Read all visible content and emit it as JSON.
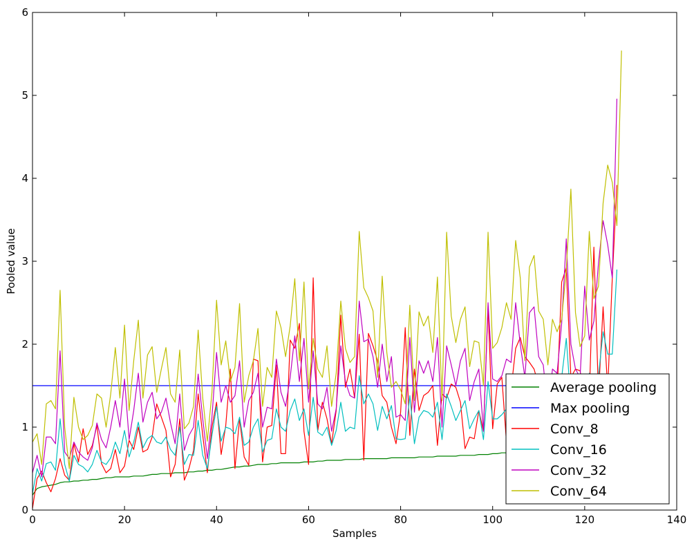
{
  "chart_data": {
    "type": "line",
    "title": "",
    "xlabel": "Samples",
    "ylabel": "Pooled value",
    "xlim": [
      0,
      140
    ],
    "ylim": [
      0,
      6
    ],
    "xticks": [
      0,
      20,
      40,
      60,
      80,
      100,
      120,
      140
    ],
    "yticks": [
      0,
      1,
      2,
      3,
      4,
      5,
      6
    ],
    "grid": false,
    "legend_position": "lower-right",
    "series": [
      {
        "name": "Average pooling",
        "color": "#008000",
        "values": [
          0.18,
          0.26,
          0.28,
          0.29,
          0.3,
          0.31,
          0.33,
          0.34,
          0.34,
          0.35,
          0.35,
          0.36,
          0.36,
          0.37,
          0.37,
          0.38,
          0.39,
          0.39,
          0.4,
          0.4,
          0.4,
          0.4,
          0.41,
          0.41,
          0.41,
          0.42,
          0.43,
          0.43,
          0.44,
          0.44,
          0.44,
          0.45,
          0.45,
          0.45,
          0.46,
          0.46,
          0.47,
          0.47,
          0.48,
          0.48,
          0.49,
          0.49,
          0.5,
          0.51,
          0.52,
          0.52,
          0.53,
          0.53,
          0.54,
          0.55,
          0.55,
          0.55,
          0.56,
          0.56,
          0.57,
          0.57,
          0.57,
          0.57,
          0.57,
          0.58,
          0.58,
          0.58,
          0.59,
          0.59,
          0.6,
          0.6,
          0.6,
          0.6,
          0.61,
          0.61,
          0.61,
          0.61,
          0.62,
          0.62,
          0.62,
          0.62,
          0.62,
          0.62,
          0.63,
          0.63,
          0.63,
          0.63,
          0.63,
          0.63,
          0.64,
          0.64,
          0.64,
          0.64,
          0.65,
          0.65,
          0.65,
          0.65,
          0.65,
          0.66,
          0.66,
          0.66,
          0.66,
          0.67,
          0.67,
          0.67,
          0.68,
          0.68,
          0.69,
          0.69,
          0.7,
          0.7,
          0.7,
          0.71,
          0.71,
          0.72,
          0.72,
          0.73,
          0.74,
          0.74,
          0.75,
          0.76,
          0.77,
          0.78,
          0.79,
          0.8,
          0.82,
          0.84,
          0.87,
          0.91,
          0.95,
          1.0,
          1.05,
          1.12
        ]
      },
      {
        "name": "Max pooling",
        "color": "#0000ff",
        "values": [
          1.5,
          1.5,
          1.5,
          1.5,
          1.5,
          1.5,
          1.5,
          1.5,
          1.5,
          1.5,
          1.5,
          1.5,
          1.5,
          1.5,
          1.5,
          1.5,
          1.5,
          1.5,
          1.5,
          1.5,
          1.5,
          1.5,
          1.5,
          1.5,
          1.5,
          1.5,
          1.5,
          1.5,
          1.5,
          1.5,
          1.5,
          1.5,
          1.5,
          1.5,
          1.5,
          1.5,
          1.5,
          1.5,
          1.5,
          1.5,
          1.5,
          1.5,
          1.5,
          1.5,
          1.5,
          1.5,
          1.5,
          1.5,
          1.5,
          1.5,
          1.5,
          1.5,
          1.5,
          1.5,
          1.5,
          1.5,
          1.5,
          1.5,
          1.5,
          1.5,
          1.5,
          1.5,
          1.5,
          1.5,
          1.5,
          1.5,
          1.5,
          1.5,
          1.5,
          1.5,
          1.5,
          1.5,
          1.5,
          1.5,
          1.5,
          1.5,
          1.5,
          1.5,
          1.5,
          1.5,
          1.5,
          1.5,
          1.5,
          1.5,
          1.5,
          1.5,
          1.5,
          1.5,
          1.5,
          1.5,
          1.5,
          1.5,
          1.5,
          1.5,
          1.5,
          1.5,
          1.5,
          1.5,
          1.5,
          1.5,
          1.5,
          1.5,
          1.5,
          1.5,
          1.5,
          1.5,
          1.5,
          1.5,
          1.5,
          1.5,
          1.5,
          1.5,
          1.5,
          1.5,
          1.5,
          1.5,
          1.5,
          1.5,
          1.5,
          1.5,
          1.5,
          1.5,
          1.5,
          1.5,
          1.5,
          1.5,
          1.5,
          1.5
        ]
      },
      {
        "name": "Conv_8",
        "color": "#ff0000",
        "values": [
          0.02,
          0.38,
          0.47,
          0.33,
          0.22,
          0.38,
          0.62,
          0.42,
          0.36,
          0.8,
          0.58,
          0.98,
          0.67,
          0.78,
          1.02,
          0.56,
          0.45,
          0.5,
          0.73,
          0.45,
          0.53,
          0.84,
          0.73,
          1.0,
          0.7,
          0.73,
          0.88,
          1.28,
          1.12,
          0.96,
          0.4,
          0.55,
          1.1,
          0.36,
          0.5,
          0.72,
          1.4,
          0.9,
          0.45,
          1.0,
          1.3,
          0.67,
          1.02,
          1.7,
          0.5,
          1.1,
          0.64,
          0.54,
          1.82,
          1.8,
          0.58,
          1.0,
          1.02,
          1.75,
          0.68,
          0.68,
          2.05,
          1.95,
          2.25,
          0.95,
          0.55,
          2.8,
          0.96,
          1.3,
          1.1,
          0.8,
          1.2,
          2.35,
          1.48,
          1.7,
          1.35,
          2.12,
          0.6,
          2.13,
          1.98,
          1.8,
          1.38,
          1.3,
          1.0,
          0.8,
          1.18,
          2.2,
          0.9,
          1.7,
          1.2,
          1.38,
          1.42,
          1.5,
          0.78,
          1.4,
          1.35,
          1.52,
          1.48,
          1.3,
          0.74,
          0.88,
          0.86,
          1.2,
          0.95,
          2.45,
          0.98,
          1.52,
          1.6,
          0.82,
          1.45,
          1.95,
          2.08,
          1.85,
          1.78,
          1.7,
          1.5,
          1.25,
          1.1,
          1.35,
          1.4,
          2.75,
          2.92,
          1.6,
          1.7,
          1.68,
          1.32,
          1.35,
          3.17,
          1.38,
          2.45,
          1.45,
          2.8,
          3.92
        ]
      },
      {
        "name": "Conv_16",
        "color": "#00bfbf",
        "values": [
          0.2,
          0.5,
          0.35,
          0.56,
          0.58,
          0.48,
          1.1,
          0.55,
          0.35,
          0.66,
          0.55,
          0.52,
          0.46,
          0.55,
          0.72,
          0.58,
          0.55,
          0.63,
          0.82,
          0.68,
          0.96,
          0.64,
          0.82,
          1.06,
          0.75,
          0.86,
          0.9,
          0.82,
          0.8,
          0.88,
          0.73,
          0.66,
          1.0,
          0.55,
          0.67,
          0.66,
          1.08,
          0.66,
          0.5,
          0.9,
          1.25,
          0.83,
          1.0,
          0.98,
          0.92,
          1.12,
          0.78,
          0.82,
          1.0,
          1.1,
          0.7,
          0.84,
          0.86,
          1.22,
          1.0,
          0.95,
          1.2,
          1.34,
          1.08,
          1.22,
          0.9,
          1.36,
          0.94,
          0.9,
          1.0,
          0.78,
          0.96,
          1.3,
          0.95,
          1.0,
          0.98,
          1.62,
          1.28,
          1.4,
          1.28,
          0.96,
          1.25,
          1.1,
          1.26,
          0.86,
          0.85,
          0.86,
          1.38,
          0.8,
          1.12,
          1.2,
          1.18,
          1.12,
          1.3,
          0.85,
          1.4,
          1.25,
          1.08,
          1.2,
          1.32,
          0.98,
          1.1,
          1.2,
          0.85,
          1.55,
          1.1,
          1.1,
          1.15,
          1.22,
          1.2,
          1.1,
          1.28,
          1.15,
          1.08,
          1.35,
          1.0,
          1.2,
          1.22,
          1.3,
          1.35,
          1.6,
          2.07,
          1.3,
          1.4,
          1.35,
          1.4,
          1.65,
          1.36,
          1.62,
          2.15,
          1.88,
          1.88,
          2.9
        ]
      },
      {
        "name": "Conv_32",
        "color": "#bf00bf",
        "values": [
          0.45,
          0.66,
          0.4,
          0.88,
          0.88,
          0.8,
          1.92,
          0.7,
          0.62,
          0.82,
          0.7,
          0.64,
          0.6,
          0.75,
          1.05,
          0.85,
          0.75,
          1.0,
          1.32,
          1.0,
          1.58,
          0.85,
          1.2,
          1.65,
          1.06,
          1.3,
          1.42,
          1.1,
          1.18,
          1.35,
          1.05,
          0.8,
          1.4,
          0.72,
          0.9,
          1.0,
          1.64,
          1.1,
          0.62,
          1.12,
          1.9,
          1.3,
          1.5,
          1.3,
          1.38,
          1.8,
          1.0,
          1.32,
          1.42,
          1.65,
          1.0,
          1.24,
          1.22,
          1.82,
          1.42,
          1.25,
          1.6,
          2.1,
          1.55,
          2.07,
          1.3,
          1.92,
          1.28,
          1.22,
          1.48,
          0.95,
          1.22,
          1.98,
          1.55,
          1.38,
          1.35,
          2.52,
          2.03,
          2.06,
          1.85,
          1.48,
          2.0,
          1.55,
          1.85,
          1.12,
          1.15,
          1.08,
          2.08,
          1.18,
          1.8,
          1.65,
          1.8,
          1.55,
          2.08,
          1.0,
          1.98,
          1.75,
          1.5,
          1.8,
          1.95,
          1.32,
          1.55,
          1.7,
          0.95,
          2.5,
          1.58,
          1.55,
          1.62,
          1.82,
          1.78,
          2.5,
          2.0,
          1.6,
          2.38,
          2.45,
          1.85,
          1.75,
          1.2,
          1.7,
          1.65,
          2.25,
          3.27,
          2.0,
          1.7,
          1.6,
          2.7,
          2.05,
          2.28,
          2.98,
          3.49,
          3.2,
          2.8,
          4.96
        ]
      },
      {
        "name": "Conv_64",
        "color": "#bfbf00",
        "values": [
          0.82,
          0.92,
          0.55,
          1.28,
          1.32,
          1.22,
          2.65,
          1.0,
          0.5,
          1.36,
          1.0,
          0.85,
          0.9,
          1.02,
          1.4,
          1.35,
          1.0,
          1.4,
          1.96,
          1.35,
          2.23,
          1.2,
          1.8,
          2.29,
          1.35,
          1.87,
          1.97,
          1.42,
          1.7,
          1.96,
          1.4,
          1.3,
          1.93,
          0.98,
          1.05,
          1.25,
          2.17,
          1.35,
          0.83,
          1.42,
          2.53,
          1.75,
          2.04,
          1.55,
          1.72,
          2.49,
          1.3,
          1.62,
          1.8,
          2.19,
          1.25,
          1.72,
          1.6,
          2.4,
          2.2,
          1.85,
          2.22,
          2.79,
          1.8,
          2.75,
          1.46,
          2.07,
          1.7,
          1.6,
          1.98,
          1.25,
          1.65,
          2.52,
          1.95,
          1.78,
          1.85,
          3.36,
          2.68,
          2.56,
          2.4,
          1.6,
          2.82,
          1.9,
          1.48,
          1.55,
          1.45,
          1.28,
          2.47,
          1.32,
          2.39,
          2.22,
          2.34,
          1.9,
          2.81,
          1.32,
          3.35,
          2.34,
          2.02,
          2.3,
          2.45,
          1.73,
          2.04,
          2.02,
          1.5,
          3.35,
          1.95,
          2.02,
          2.2,
          2.5,
          2.3,
          3.25,
          2.8,
          1.8,
          2.93,
          3.07,
          2.4,
          2.3,
          1.75,
          2.3,
          2.15,
          2.3,
          2.9,
          3.87,
          2.38,
          1.97,
          2.1,
          3.36,
          2.55,
          2.7,
          3.7,
          4.16,
          3.95,
          3.43,
          5.54
        ]
      }
    ]
  }
}
